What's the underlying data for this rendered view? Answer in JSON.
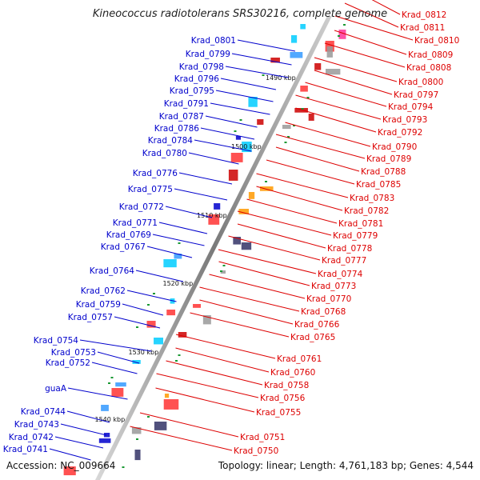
{
  "title": "Kineococcus radiotolerans SRS30216, complete genome",
  "accession": "Accession: NC_009664",
  "topology": "Topology: linear; Length: 4,761,183 bp; Genes: 4,544",
  "colors": {
    "left_label": "#0000cc",
    "right_label": "#dd0000",
    "backbone": "#888888"
  },
  "kbp_marks": [
    "1490 kbp",
    "1500 kbp",
    "1510 kbp",
    "1520 kbp",
    "1530 kbp",
    "1540 kbp"
  ],
  "left_labels": [
    "Krad_0801",
    "Krad_0799",
    "Krad_0798",
    "Krad_0796",
    "Krad_0795",
    "Krad_0791",
    "Krad_0787",
    "Krad_0786",
    "Krad_0784",
    "Krad_0780",
    "Krad_0776",
    "Krad_0775",
    "Krad_0772",
    "Krad_0771",
    "Krad_0769",
    "Krad_0767",
    "Krad_0764",
    "Krad_0762",
    "Krad_0759",
    "Krad_0757",
    "Krad_0754",
    "Krad_0753",
    "Krad_0752",
    "guaA",
    "Krad_0744",
    "Krad_0743",
    "Krad_0742",
    "Krad_0741"
  ],
  "right_labels": [
    "Krad_0812",
    "Krad_0811",
    "Krad_0810",
    "Krad_0809",
    "Krad_0808",
    "Krad_0800",
    "Krad_0797",
    "Krad_0794",
    "Krad_0793",
    "Krad_0792",
    "Krad_0790",
    "Krad_0789",
    "Krad_0788",
    "Krad_0785",
    "Krad_0783",
    "Krad_0782",
    "Krad_0781",
    "Krad_0779",
    "Krad_0778",
    "Krad_0777",
    "Krad_0774",
    "Krad_0773",
    "Krad_0770",
    "Krad_0768",
    "Krad_0766",
    "Krad_0765",
    "Krad_0761",
    "Krad_0760",
    "Krad_0758",
    "Krad_0756",
    "Krad_0755",
    "Krad_0751",
    "Krad_0750"
  ]
}
